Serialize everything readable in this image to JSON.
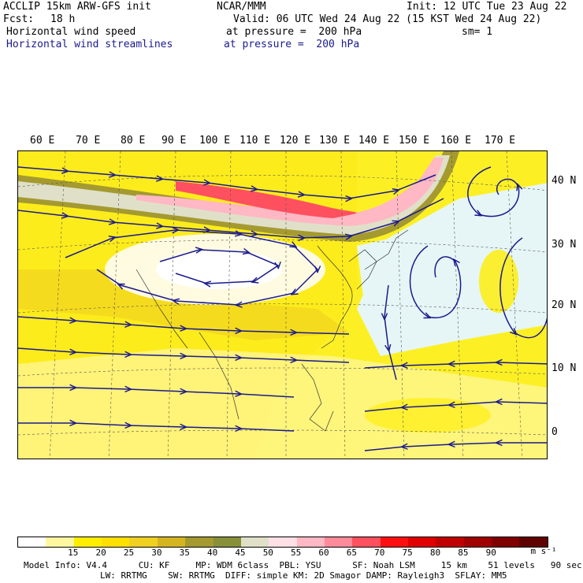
{
  "header": {
    "model": "ACCLIP 15km ARW-GFS init",
    "org": "NCAR/MMM",
    "init": "Init: 12 UTC Tue 23 Aug 22",
    "fcst_label": "Fcst:",
    "fcst_value": "18 h",
    "valid": "Valid: 06 UTC Wed 24 Aug 22 (15 KST Wed 24 Aug 22)",
    "field1_name": "Horizontal wind speed",
    "field1_level": "at pressure =  200 hPa",
    "sm": "sm= 1",
    "field2_name": "Horizontal wind streamlines",
    "field2_level": "at pressure =  200 hPa"
  },
  "map": {
    "lon_labels": [
      "60 E",
      "70 E",
      "80 E",
      "90 E",
      "100 E",
      "110 E",
      "120 E",
      "130 E",
      "140 E",
      "150 E",
      "160 E",
      "170 E"
    ],
    "lat_labels": [
      "40 N",
      "30 N",
      "20 N",
      "10 N",
      "0"
    ],
    "colors": {
      "streamline": "#1a1a8c",
      "water_bg": "#e6f6f6",
      "land_bg": "#f0dcb4"
    }
  },
  "colorbar": {
    "colors": [
      "#ffffff",
      "#fff7a0",
      "#ffee00",
      "#ffe000",
      "#f0d020",
      "#d4b520",
      "#a49a30",
      "#88903a",
      "#e0e0c8",
      "#ffe0e6",
      "#ffb8c4",
      "#ff8a9a",
      "#ff5060",
      "#ff1010",
      "#e00000",
      "#c00000",
      "#a00000",
      "#800000",
      "#600000"
    ],
    "labels": [
      "15",
      "20",
      "25",
      "30",
      "35",
      "40",
      "45",
      "50",
      "55",
      "60",
      "65",
      "70",
      "75",
      "80",
      "85",
      "90"
    ],
    "unit": "m s⁻¹"
  },
  "footer": {
    "line1": "Model Info: V4.4      CU: KF     MP: WDM 6class  PBL: YSU      SF: Noah LSM     15 km    51 levels   90 sec",
    "line2": "LW: RRTMG    SW: RRTMG  DIFF: simple KM: 2D Smagor DAMP: Rayleigh3  SFLAY: MM5"
  }
}
